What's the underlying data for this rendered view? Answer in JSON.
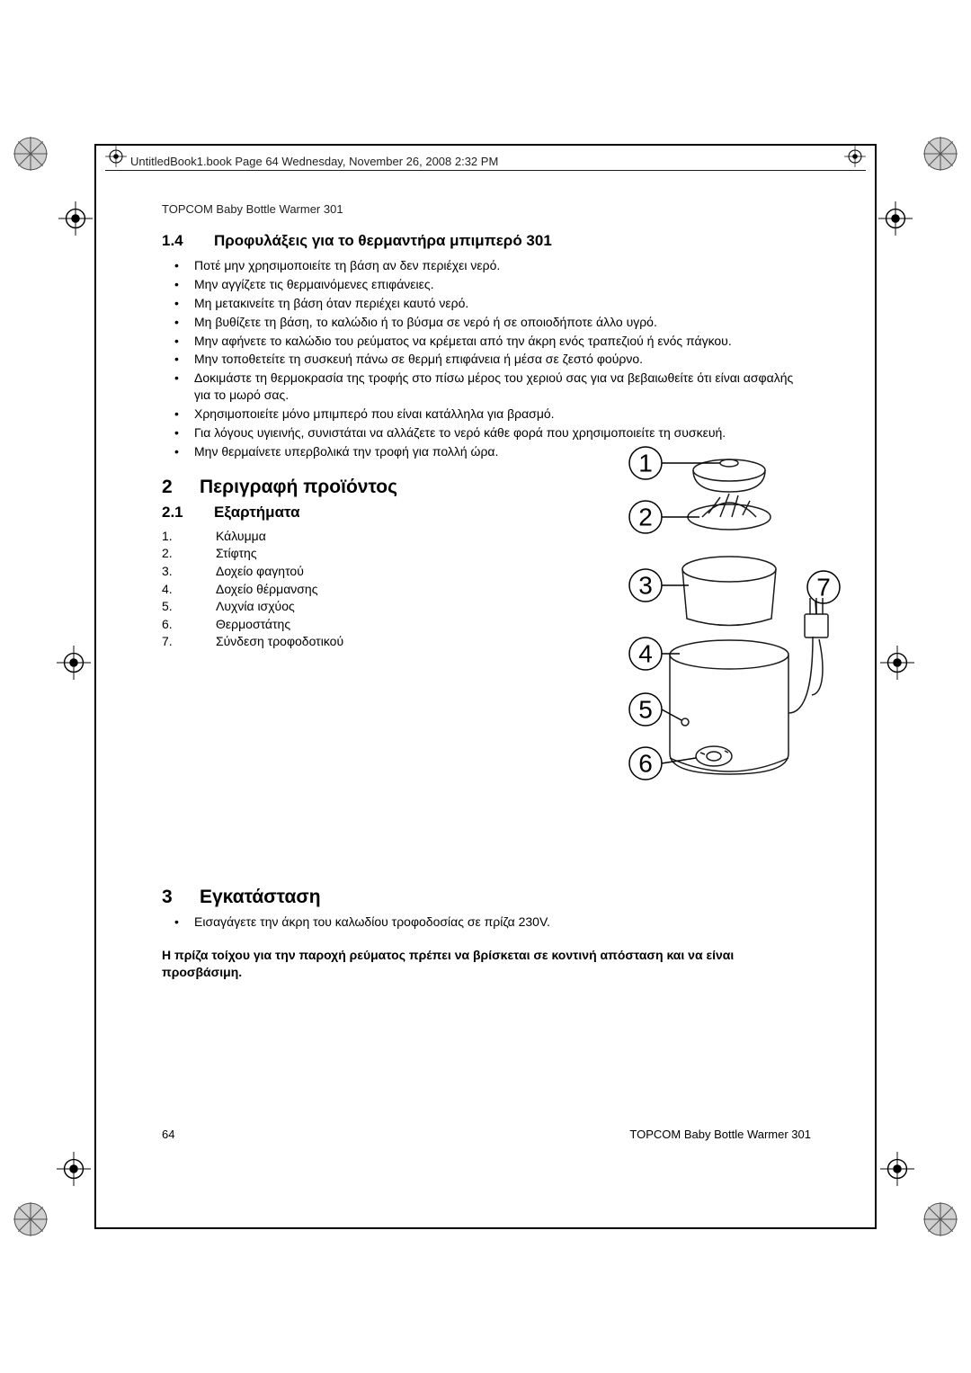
{
  "header_running": "UntitledBook1.book  Page 64  Wednesday, November 26, 2008  2:32 PM",
  "doc_title": "TOPCOM Baby Bottle Warmer 301",
  "section_1_4": {
    "num": "1.4",
    "title": "Προφυλάξεις για το θερμαντήρα μπιμπερό 301",
    "bullets": [
      "Ποτέ μην χρησιμοποιείτε τη βάση αν δεν περιέχει νερό.",
      "Μην αγγίζετε τις θερμαινόμενες επιφάνειες.",
      "Μη μετακινείτε τη βάση όταν περιέχει καυτό νερό.",
      "Μη βυθίζετε τη βάση, το καλώδιο ή το βύσμα σε νερό ή σε οποιοδήποτε άλλο υγρό.",
      "Μην αφήνετε το καλώδιο του ρεύματος να κρέμεται από την άκρη ενός τραπεζιού ή ενός πάγκου.",
      "Μην τοποθετείτε τη συσκευή πάνω σε θερμή επιφάνεια ή μέσα σε ζεστό φούρνο.",
      "Δοκιμάστε τη θερμοκρασία της τροφής στο πίσω μέρος του χεριού σας για να βεβαιωθείτε ότι είναι ασφαλής για το μωρό σας.",
      "Χρησιμοποιείτε μόνο μπιμπερό που είναι κατάλληλα για βρασμό.",
      "Για λόγους υγιεινής, συνιστάται να αλλάζετε το νερό κάθε φορά που χρησιμοποιείτε τη συσκευή.",
      "Μην θερμαίνετε υπερβολικά την τροφή για πολλή ώρα."
    ]
  },
  "section_2": {
    "num": "2",
    "title": "Περιγραφή προϊόντος"
  },
  "section_2_1": {
    "num": "2.1",
    "title": "Εξαρτήματα",
    "items": [
      {
        "n": "1.",
        "t": "Κάλυμμα"
      },
      {
        "n": "2.",
        "t": "Στίφτης"
      },
      {
        "n": "3.",
        "t": "Δοχείο φαγητού"
      },
      {
        "n": "4.",
        "t": "Δοχείο θέρμανσης"
      },
      {
        "n": "5.",
        "t": "Λυχνία ισχύος"
      },
      {
        "n": "6.",
        "t": "Θερμοστάτης"
      },
      {
        "n": "7.",
        "t": "Σύνδεση τροφοδοτικού"
      }
    ]
  },
  "section_3": {
    "num": "3",
    "title": "Εγκατάσταση",
    "bullet": "Εισαγάγετε την άκρη του καλωδίου τροφοδοσίας σε πρίζα 230V.",
    "note": "Η πρίζα τοίχου για την παροχή ρεύματος πρέπει να βρίσκεται σε κοντινή απόσταση και να είναι προσβάσιμη."
  },
  "page_num": "64",
  "footer_right": "TOPCOM Baby Bottle Warmer 301",
  "diagram": {
    "labels": [
      "1",
      "2",
      "3",
      "4",
      "5",
      "6",
      "7"
    ],
    "stroke": "#1a1a1a",
    "fill_none": "none",
    "label_fontsize": 28
  },
  "colors": {
    "text": "#000000",
    "line": "#1a1a1a",
    "bg": "#ffffff"
  }
}
